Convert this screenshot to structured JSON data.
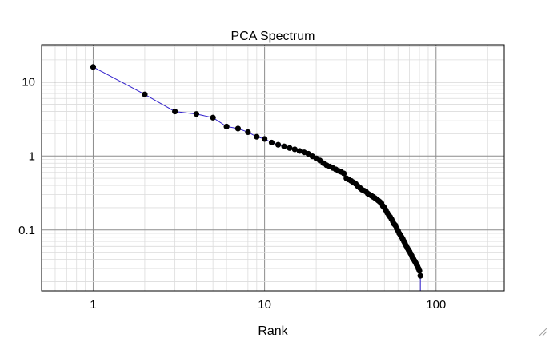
{
  "chart_data": {
    "type": "scatter",
    "title": "PCA Spectrum",
    "xlabel": "Rank",
    "ylabel": "",
    "x_scale": "log",
    "y_scale": "log",
    "xlim": [
      0.5,
      250
    ],
    "ylim": [
      0.015,
      32
    ],
    "grid": true,
    "legend": "none",
    "x_ticks": [
      {
        "value": 1,
        "label": "1"
      },
      {
        "value": 10,
        "label": "10"
      },
      {
        "value": 100,
        "label": "100"
      }
    ],
    "y_ticks": [
      {
        "value": 10,
        "label": "10"
      },
      {
        "value": 1,
        "label": "1"
      },
      {
        "value": 0.1,
        "label": "0.1"
      }
    ],
    "colors": {
      "line": "#3322cc",
      "marker": "#000000",
      "major_grid": "#8c8c8c",
      "minor_grid": "#dcdcdc",
      "frame": "#000000"
    },
    "series": [
      {
        "x": [
          1,
          2,
          3,
          4,
          5,
          6,
          7,
          8,
          9,
          10,
          11,
          12,
          13,
          14,
          15,
          16,
          17,
          18,
          19,
          20,
          21,
          22,
          23,
          24,
          25,
          26,
          27,
          28,
          29,
          30,
          31,
          32,
          33,
          34,
          35,
          36,
          37,
          38,
          39,
          40,
          41,
          42,
          43,
          44,
          45,
          46,
          47,
          48,
          49,
          50,
          51,
          52,
          53,
          54,
          55,
          56,
          57,
          58,
          59,
          60,
          61,
          62,
          63,
          64,
          65,
          66,
          67,
          68,
          69,
          70,
          71,
          72,
          73,
          74,
          75,
          76,
          77,
          78,
          79,
          80,
          81
        ],
        "y": [
          16,
          6.8,
          4.0,
          3.7,
          3.3,
          2.5,
          2.35,
          2.1,
          1.82,
          1.7,
          1.52,
          1.42,
          1.35,
          1.28,
          1.23,
          1.17,
          1.12,
          1.07,
          0.99,
          0.93,
          0.87,
          0.8,
          0.75,
          0.72,
          0.69,
          0.66,
          0.63,
          0.61,
          0.58,
          0.5,
          0.48,
          0.46,
          0.44,
          0.42,
          0.39,
          0.37,
          0.35,
          0.34,
          0.33,
          0.31,
          0.3,
          0.29,
          0.28,
          0.27,
          0.26,
          0.25,
          0.24,
          0.23,
          0.21,
          0.2,
          0.185,
          0.17,
          0.16,
          0.15,
          0.14,
          0.13,
          0.12,
          0.115,
          0.105,
          0.098,
          0.09,
          0.085,
          0.08,
          0.075,
          0.07,
          0.065,
          0.061,
          0.057,
          0.054,
          0.051,
          0.048,
          0.045,
          0.042,
          0.04,
          0.038,
          0.036,
          0.034,
          0.032,
          0.03,
          0.028,
          0.024
        ]
      }
    ]
  }
}
